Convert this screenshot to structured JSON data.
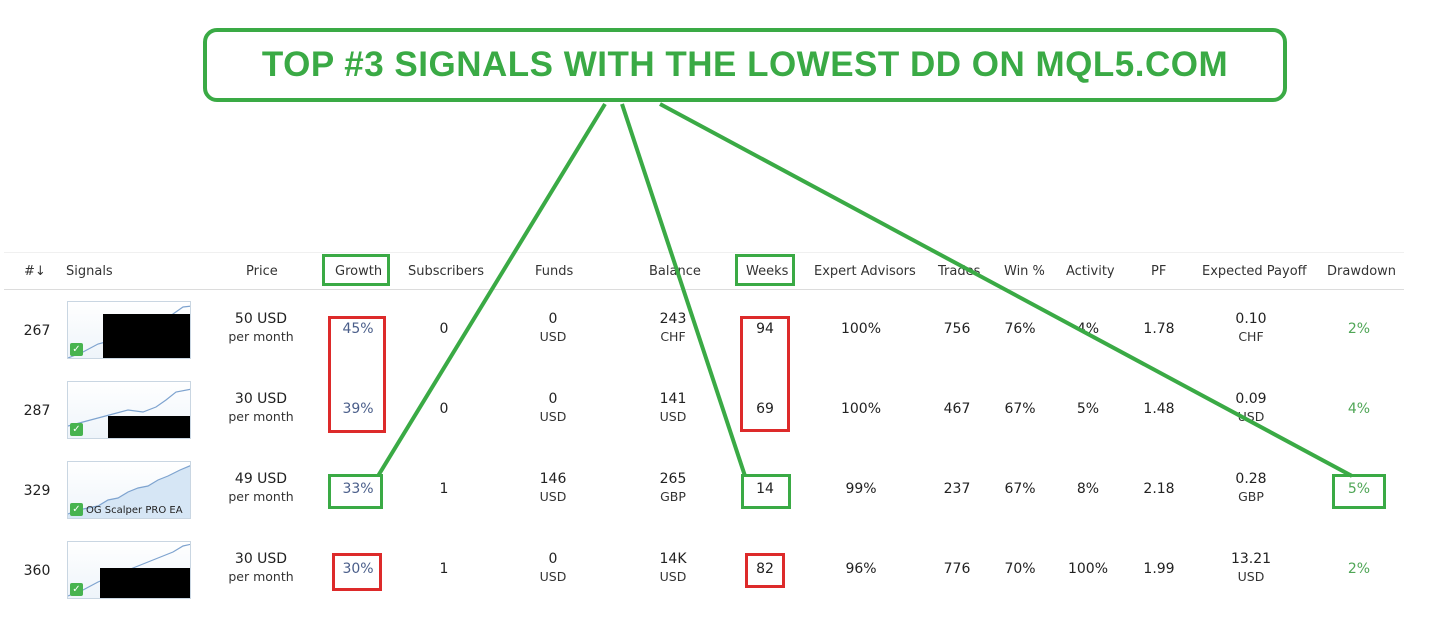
{
  "banner": {
    "text": "TOP #3 SIGNALS WITH THE LOWEST DD ON MQL5.COM"
  },
  "headers": {
    "rank": "#↓",
    "signals": "Signals",
    "price": "Price",
    "growth": "Growth",
    "subscribers": "Subscribers",
    "funds": "Funds",
    "balance": "Balance",
    "weeks": "Weeks",
    "expert_advisors": "Expert Advisors",
    "trades": "Trades",
    "win": "Win %",
    "activity": "Activity",
    "pf": "PF",
    "expected_payoff": "Expected Payoff",
    "drawdown": "Drawdown"
  },
  "rows": [
    {
      "rank": "267",
      "signal_name": "",
      "price": "50 USD",
      "price_period": "per month",
      "growth": "45%",
      "subscribers": "0",
      "funds": "0",
      "funds_cur": "USD",
      "balance": "243",
      "balance_cur": "CHF",
      "weeks": "94",
      "expert_advisors": "100%",
      "trades": "756",
      "win": "76%",
      "activity": "4%",
      "pf": "1.78",
      "payoff": "0.10",
      "payoff_cur": "CHF",
      "drawdown": "2%"
    },
    {
      "rank": "287",
      "signal_name": "",
      "price": "30 USD",
      "price_period": "per month",
      "growth": "39%",
      "subscribers": "0",
      "funds": "0",
      "funds_cur": "USD",
      "balance": "141",
      "balance_cur": "USD",
      "weeks": "69",
      "expert_advisors": "100%",
      "trades": "467",
      "win": "67%",
      "activity": "5%",
      "pf": "1.48",
      "payoff": "0.09",
      "payoff_cur": "USD",
      "drawdown": "4%"
    },
    {
      "rank": "329",
      "signal_name": "OG Scalper PRO EA",
      "price": "49 USD",
      "price_period": "per month",
      "growth": "33%",
      "subscribers": "1",
      "funds": "146",
      "funds_cur": "USD",
      "balance": "265",
      "balance_cur": "GBP",
      "weeks": "14",
      "expert_advisors": "99%",
      "trades": "237",
      "win": "67%",
      "activity": "8%",
      "pf": "2.18",
      "payoff": "0.28",
      "payoff_cur": "GBP",
      "drawdown": "5%"
    },
    {
      "rank": "360",
      "signal_name": "",
      "price": "30 USD",
      "price_period": "per month",
      "growth": "30%",
      "subscribers": "1",
      "funds": "0",
      "funds_cur": "USD",
      "balance": "14K",
      "balance_cur": "USD",
      "weeks": "82",
      "expert_advisors": "96%",
      "trades": "776",
      "win": "70%",
      "activity": "100%",
      "pf": "1.99",
      "payoff": "13.21",
      "payoff_cur": "USD",
      "drawdown": "2%"
    }
  ],
  "colors": {
    "highlight_green": "#3aaa45",
    "highlight_red": "#dd2a2a",
    "growth_text": "#4a5e8a",
    "drawdown_text": "#4fa656"
  },
  "icons": {
    "verified": "checkmark-icon"
  }
}
